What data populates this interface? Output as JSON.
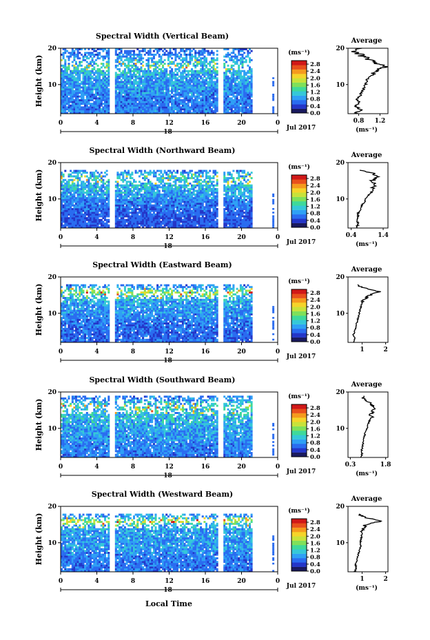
{
  "figure": {
    "x_axis_title": "Local Time",
    "date_label": "Jul 2017",
    "day_label": "18",
    "height_axis_label": "Height (km)",
    "unit_label": "(ms⁻¹)",
    "average_title": "Average",
    "colors": {
      "colormap": [
        "#1a1a5e",
        "#2436c8",
        "#2a6cf0",
        "#2fa0f5",
        "#35c8d8",
        "#3fd99a",
        "#7fe05a",
        "#c8e23a",
        "#f5d42a",
        "#f59a1e",
        "#e8501c",
        "#d01818"
      ],
      "profile_line": "#000000",
      "background": "#ffffff"
    }
  },
  "chart_data": [
    {
      "type": "heatmap",
      "title": "Spectral Width (Vertical Beam)",
      "ylabel": "Height (km)",
      "x_ticks": [
        "0",
        "4",
        "8",
        "12",
        "16",
        "20",
        "0"
      ],
      "y_ticks": [
        "20",
        "10"
      ],
      "xlim": [
        0,
        24
      ],
      "ylim": [
        2,
        20
      ],
      "colorbar": {
        "label": "(ms⁻¹)",
        "ticks": [
          "2.8",
          "2.4",
          "2.0",
          "1.6",
          "1.2",
          "0.8",
          "0.4",
          "0.0"
        ],
        "range": [
          0,
          3.0
        ]
      },
      "data_gaps_hours": [
        [
          5.5,
          6.0
        ],
        [
          17.4,
          17.9
        ],
        [
          21.2,
          23.1
        ]
      ],
      "data_top_km": 20,
      "average_profile": {
        "xlabel": "(ms⁻¹)",
        "x_ticks": [
          "0.8",
          "1.2"
        ],
        "xlim": [
          0.6,
          1.35
        ],
        "y_ticks": [
          "20",
          "10"
        ],
        "height_km": [
          2.0,
          3.0,
          4.0,
          5.0,
          6.0,
          7.0,
          8.0,
          9.0,
          10.0,
          11.0,
          12.0,
          13.0,
          14.0,
          15.0,
          16.0,
          17.0,
          18.0,
          19.0,
          20.0
        ],
        "values": [
          0.72,
          0.85,
          0.74,
          0.8,
          0.78,
          0.83,
          0.86,
          0.9,
          0.93,
          0.95,
          1.0,
          1.1,
          1.18,
          1.28,
          1.08,
          1.0,
          0.85,
          0.72,
          0.8
        ]
      }
    },
    {
      "type": "heatmap",
      "title": "Spectral Width (Northward Beam)",
      "ylabel": "Height (km)",
      "x_ticks": [
        "0",
        "4",
        "8",
        "12",
        "16",
        "20",
        "0"
      ],
      "y_ticks": [
        "20",
        "10"
      ],
      "xlim": [
        0,
        24
      ],
      "ylim": [
        2,
        20
      ],
      "colorbar": {
        "label": "(ms⁻¹)",
        "ticks": [
          "2.8",
          "2.4",
          "2.0",
          "1.6",
          "1.2",
          "0.8",
          "0.4",
          "0.0"
        ],
        "range": [
          0,
          3.0
        ]
      },
      "data_gaps_hours": [
        [
          5.5,
          6.0
        ],
        [
          17.4,
          17.9
        ],
        [
          21.2,
          23.1
        ]
      ],
      "data_top_km": 18,
      "average_profile": {
        "xlabel": "(ms⁻¹)",
        "x_ticks": [
          "0.4",
          "1.4"
        ],
        "xlim": [
          0.3,
          1.55
        ],
        "y_ticks": [
          "20",
          "10"
        ],
        "height_km": [
          2.0,
          3.0,
          4.0,
          5.0,
          6.0,
          7.0,
          8.0,
          9.0,
          10.0,
          11.0,
          12.0,
          13.0,
          14.0,
          15.0,
          16.0,
          17.0,
          18.0
        ],
        "values": [
          0.55,
          0.62,
          0.58,
          0.6,
          0.62,
          0.68,
          0.72,
          0.8,
          0.85,
          0.95,
          1.05,
          1.1,
          1.2,
          1.05,
          1.25,
          1.1,
          0.65
        ]
      }
    },
    {
      "type": "heatmap",
      "title": "Spectral Width (Eastward Beam)",
      "ylabel": "Height (km)",
      "x_ticks": [
        "0",
        "4",
        "8",
        "12",
        "16",
        "20",
        "0"
      ],
      "y_ticks": [
        "20",
        "10"
      ],
      "xlim": [
        0,
        24
      ],
      "ylim": [
        2,
        20
      ],
      "colorbar": {
        "label": "(ms⁻¹)",
        "ticks": [
          "2.8",
          "2.4",
          "2.0",
          "1.6",
          "1.2",
          "0.8",
          "0.4",
          "0.0"
        ],
        "range": [
          0,
          3.0
        ]
      },
      "data_gaps_hours": [
        [
          5.5,
          6.0
        ],
        [
          17.4,
          17.9
        ],
        [
          21.2,
          23.1
        ]
      ],
      "data_top_km": 18,
      "average_profile": {
        "xlabel": "",
        "x_ticks": [
          "1",
          "2"
        ],
        "xlim": [
          0.4,
          2.1
        ],
        "y_ticks": [
          "20",
          "10"
        ],
        "height_km": [
          2.0,
          3.0,
          4.0,
          5.0,
          6.0,
          7.0,
          8.0,
          9.0,
          10.0,
          11.0,
          12.0,
          13.0,
          14.0,
          15.0,
          16.0,
          17.0,
          18.0
        ],
        "values": [
          0.65,
          0.7,
          0.62,
          0.68,
          0.72,
          0.75,
          0.8,
          0.85,
          0.88,
          0.92,
          0.95,
          1.0,
          1.1,
          1.35,
          1.75,
          1.05,
          0.75
        ]
      }
    },
    {
      "type": "heatmap",
      "title": "Spectral Width (Southward Beam)",
      "ylabel": "Height (km)",
      "x_ticks": [
        "0",
        "4",
        "8",
        "12",
        "16",
        "20",
        "0"
      ],
      "y_ticks": [
        "20",
        "10"
      ],
      "xlim": [
        0,
        24
      ],
      "ylim": [
        2,
        20
      ],
      "colorbar": {
        "label": "(ms⁻¹)",
        "ticks": [
          "2.8",
          "2.4",
          "2.0",
          "1.6",
          "1.2",
          "0.8",
          "0.4",
          "0.0"
        ],
        "range": [
          0,
          3.0
        ]
      },
      "data_gaps_hours": [
        [
          5.5,
          6.0
        ],
        [
          17.4,
          17.9
        ],
        [
          21.2,
          23.1
        ]
      ],
      "data_top_km": 19,
      "average_profile": {
        "xlabel": "(ms⁻¹)",
        "x_ticks": [
          "0.3",
          "1.8"
        ],
        "xlim": [
          0.2,
          1.9
        ],
        "y_ticks": [
          "20",
          "10"
        ],
        "height_km": [
          2.0,
          3.0,
          4.0,
          5.0,
          6.0,
          7.0,
          8.0,
          9.0,
          10.0,
          11.0,
          12.0,
          13.0,
          14.0,
          15.0,
          16.0,
          17.0,
          18.0,
          19.0
        ],
        "values": [
          0.75,
          0.8,
          0.78,
          0.82,
          0.85,
          0.88,
          0.9,
          0.95,
          1.0,
          1.05,
          1.1,
          1.2,
          1.15,
          1.3,
          1.25,
          1.15,
          0.9,
          0.8
        ]
      }
    },
    {
      "type": "heatmap",
      "title": "Spectral Width (Westward Beam)",
      "ylabel": "Height (km)",
      "x_ticks": [
        "0",
        "4",
        "8",
        "12",
        "16",
        "20",
        "0"
      ],
      "y_ticks": [
        "20",
        "10"
      ],
      "xlim": [
        0,
        24
      ],
      "ylim": [
        2,
        20
      ],
      "colorbar": {
        "label": "(ms⁻¹)",
        "ticks": [
          "2.8",
          "2.4",
          "2.0",
          "1.6",
          "1.2",
          "0.8",
          "0.4",
          "0.0"
        ],
        "range": [
          0,
          3.0
        ]
      },
      "data_gaps_hours": [
        [
          5.5,
          6.0
        ],
        [
          17.4,
          17.9
        ],
        [
          21.2,
          23.1
        ]
      ],
      "data_top_km": 18,
      "average_profile": {
        "xlabel": "(ms⁻¹)",
        "x_ticks": [
          "1",
          "2"
        ],
        "xlim": [
          0.4,
          2.1
        ],
        "y_ticks": [
          "20",
          "10"
        ],
        "height_km": [
          2.0,
          3.0,
          4.0,
          5.0,
          6.0,
          7.0,
          8.0,
          9.0,
          10.0,
          11.0,
          12.0,
          13.0,
          14.0,
          15.0,
          16.0,
          17.0,
          18.0
        ],
        "values": [
          0.7,
          0.75,
          0.72,
          0.78,
          0.8,
          0.85,
          0.9,
          0.95,
          0.92,
          0.96,
          0.98,
          1.0,
          1.05,
          1.15,
          1.85,
          1.1,
          0.8
        ]
      }
    }
  ]
}
